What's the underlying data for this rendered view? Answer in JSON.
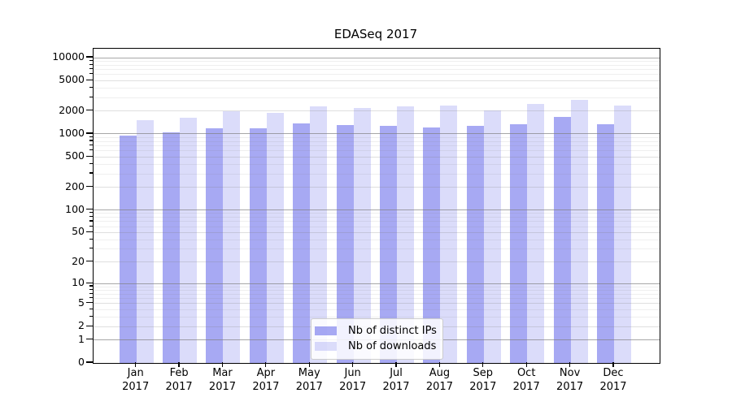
{
  "chart_data": {
    "type": "bar",
    "title": "EDASeq 2017",
    "categories": [
      "Jan 2017",
      "Feb 2017",
      "Mar 2017",
      "Apr 2017",
      "May 2017",
      "Jun 2017",
      "Jul 2017",
      "Aug 2017",
      "Sep 2017",
      "Oct 2017",
      "Nov 2017",
      "Dec 2017"
    ],
    "series": [
      {
        "name": "Nb of distinct IPs",
        "color": "#676beb94",
        "values": [
          940,
          1050,
          1190,
          1190,
          1390,
          1310,
          1280,
          1220,
          1290,
          1330,
          1680,
          1340
        ]
      },
      {
        "name": "Nb of downloads",
        "color": "#676beb3d",
        "values": [
          1530,
          1650,
          2000,
          1880,
          2280,
          2210,
          2300,
          2380,
          2040,
          2500,
          2820,
          2340
        ]
      }
    ],
    "xlabel": "",
    "ylabel": "",
    "yscale": "log1p",
    "ylim": [
      0,
      13000
    ],
    "yticks": [
      0,
      1,
      2,
      5,
      10,
      20,
      50,
      100,
      200,
      500,
      1000,
      2000,
      5000,
      10000
    ],
    "grid": true,
    "legend_position": "inside-bottom-center",
    "colors": {
      "grid_major": "#808080b0",
      "grid_mid": "#80808040",
      "grid_minor": "#80808020",
      "axis": "#000000",
      "legend_border": "#cccccc"
    }
  }
}
